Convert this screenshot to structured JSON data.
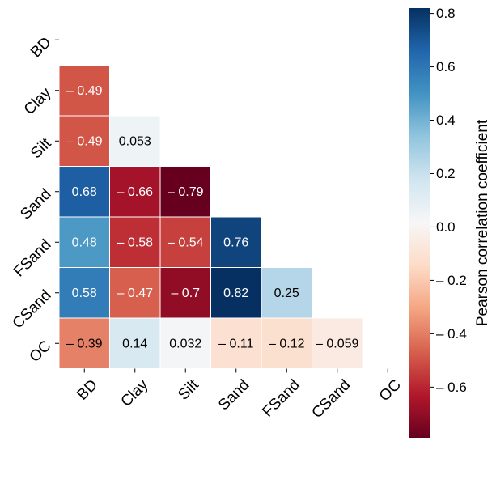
{
  "chart_data": {
    "type": "heatmap",
    "variables": [
      "BD",
      "Clay",
      "Silt",
      "Sand",
      "FSand",
      "CSand",
      "OC"
    ],
    "matrix_lower": [
      [],
      [
        -0.49
      ],
      [
        -0.49,
        0.053
      ],
      [
        0.68,
        -0.66,
        -0.79
      ],
      [
        0.48,
        -0.58,
        -0.54,
        0.76
      ],
      [
        0.58,
        -0.47,
        -0.7,
        0.82,
        0.25
      ],
      [
        -0.39,
        0.14,
        0.032,
        -0.11,
        -0.12,
        -0.059
      ]
    ],
    "value_labels": [
      [],
      [
        "– 0.49"
      ],
      [
        "– 0.49",
        "0.053"
      ],
      [
        "0.68",
        "– 0.66",
        "– 0.79"
      ],
      [
        "0.48",
        "– 0.58",
        "– 0.54",
        "0.76"
      ],
      [
        "0.58",
        "– 0.47",
        "– 0.7",
        "0.82",
        "0.25"
      ],
      [
        "– 0.39",
        "0.14",
        "0.032",
        "– 0.11",
        "– 0.12",
        "– 0.059"
      ]
    ],
    "mask": "upper triangle and diagonal",
    "colormap": "RdBu",
    "color_min": -0.79,
    "color_max": 0.82,
    "colorbar": {
      "label": "Pearson correlation coefficient",
      "ticks": [
        0.8,
        0.6,
        0.4,
        0.2,
        0.0,
        -0.2,
        -0.4,
        -0.6
      ],
      "tick_labels": [
        "0.8",
        "0.6",
        "0.4",
        "0.2",
        "0.0",
        "– 0.2",
        "– 0.4",
        "– 0.6"
      ],
      "placement": "right"
    },
    "colors": {
      "strong_negative": "#67001f",
      "neutral": "#f7f7f7",
      "strong_positive": "#053061",
      "dark_text": "#000000",
      "light_text": "#ffffff"
    }
  }
}
